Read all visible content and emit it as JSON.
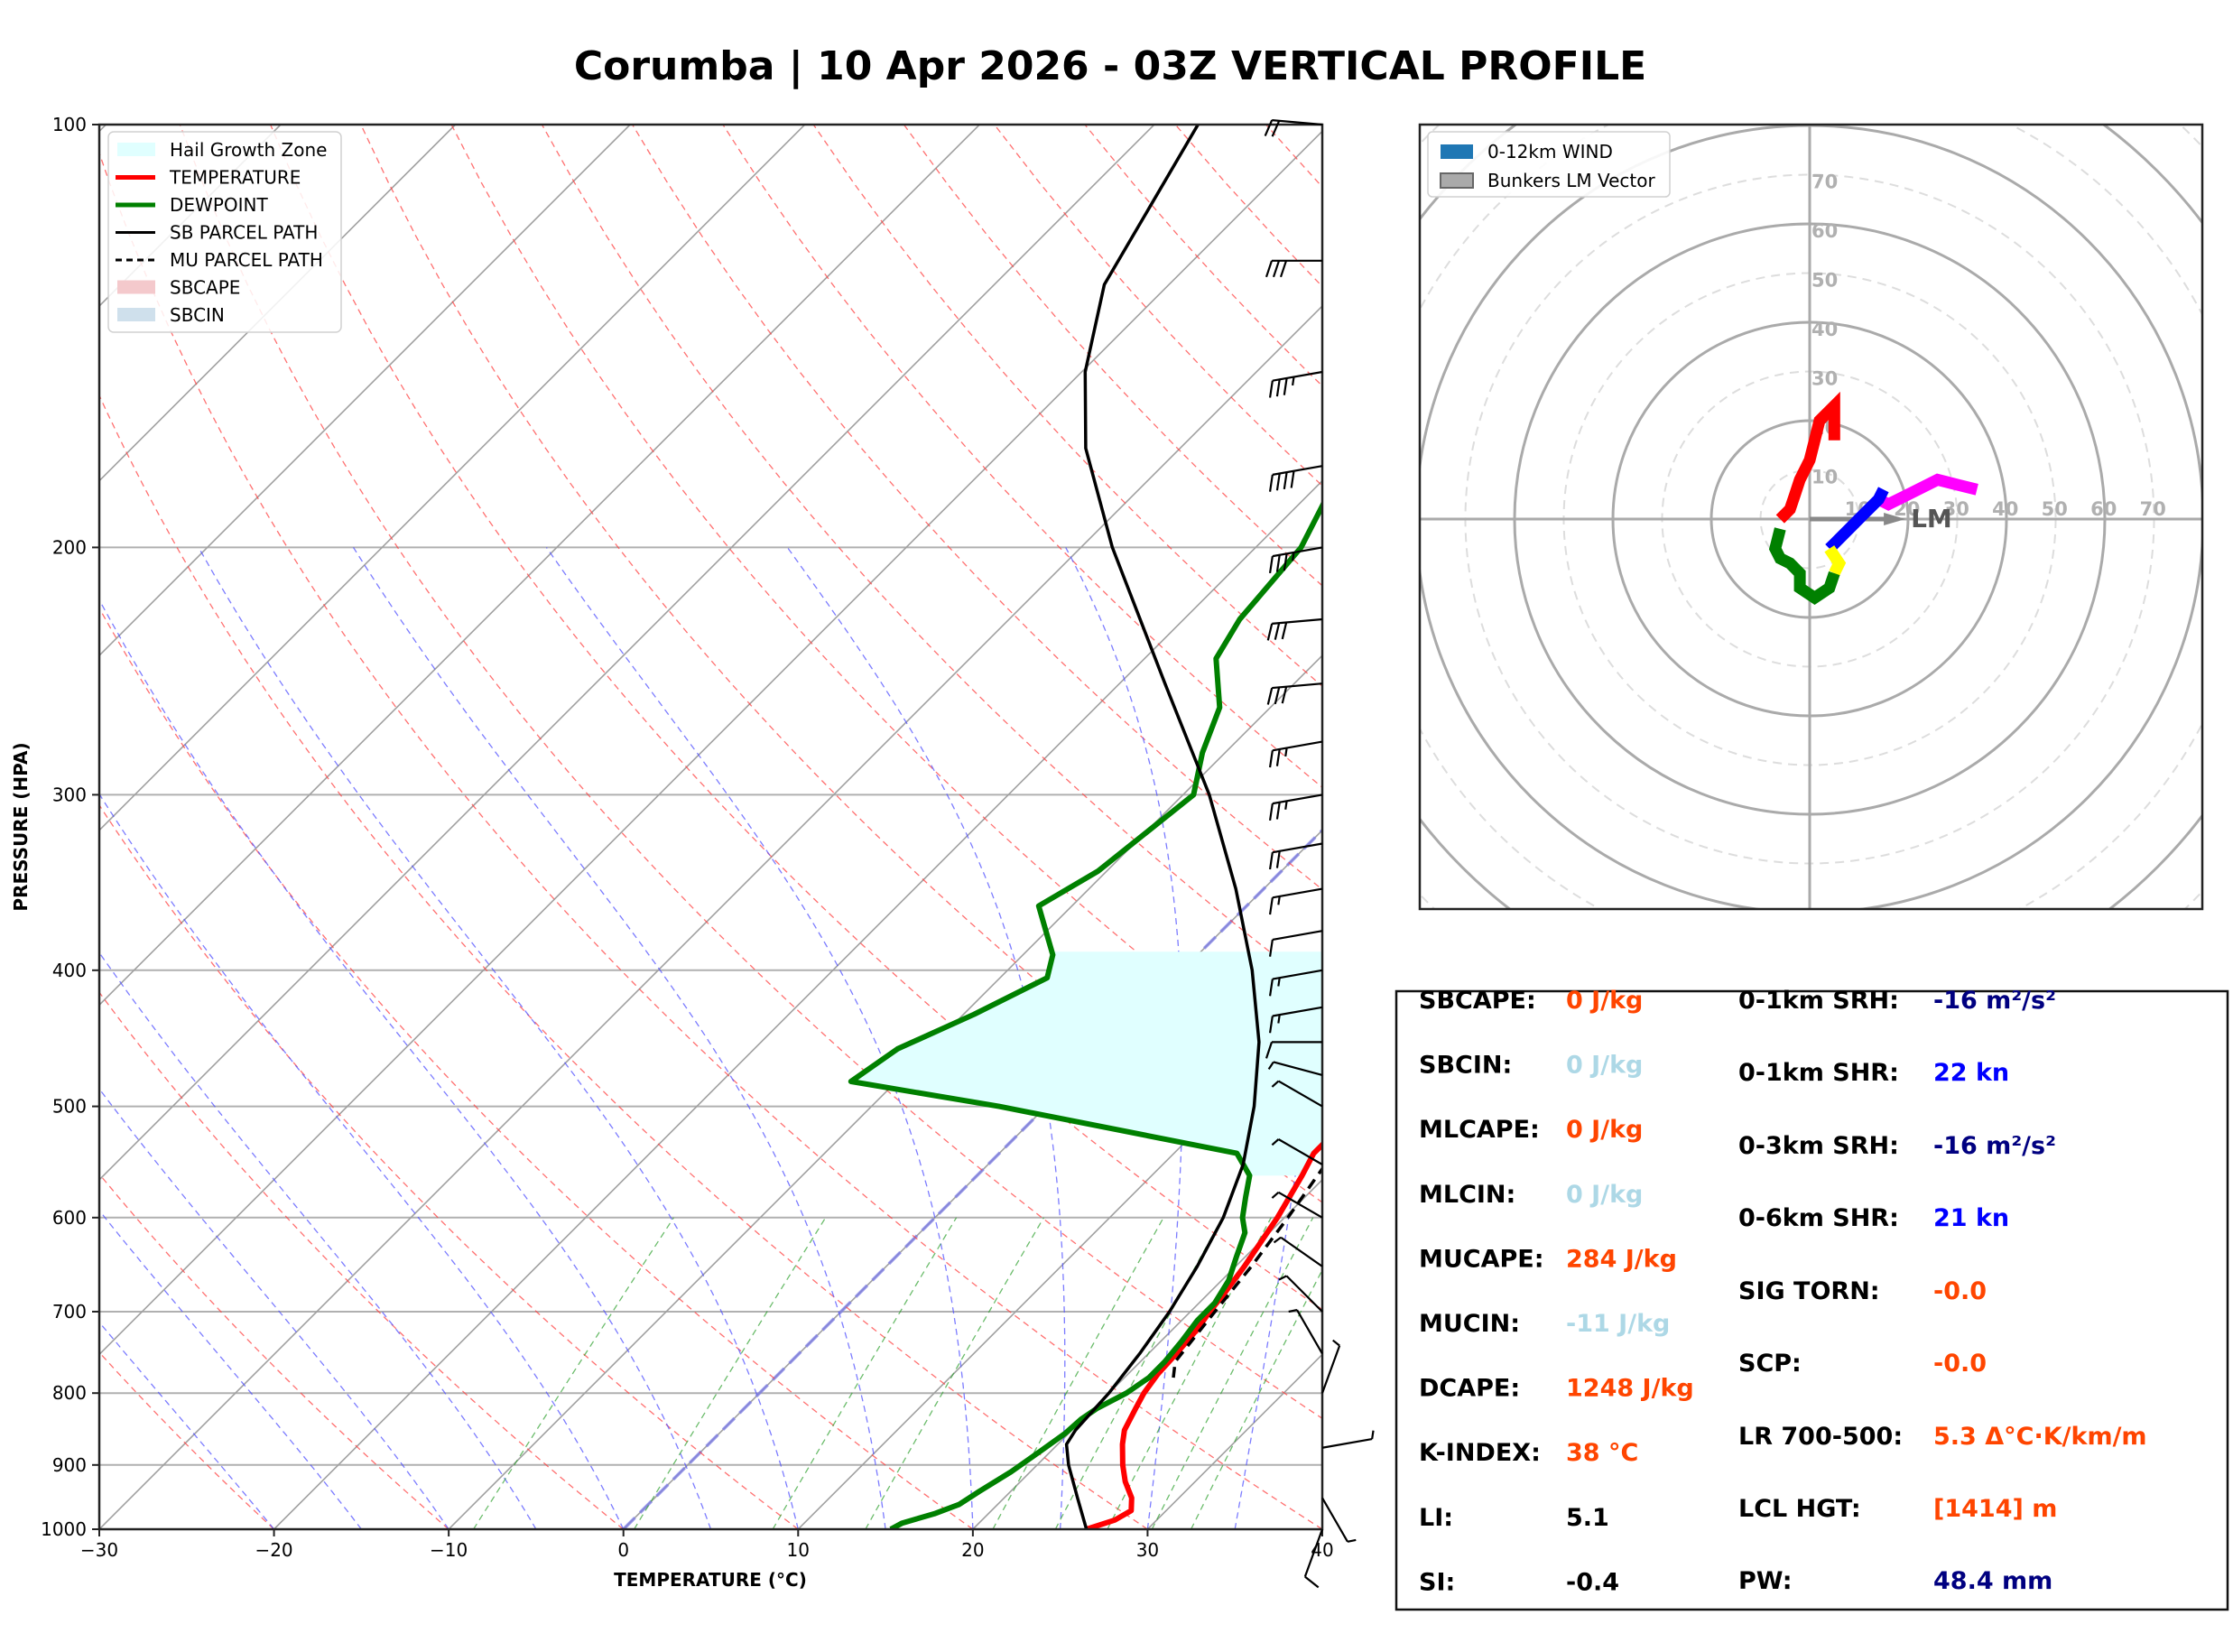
{
  "chart_data": [
    {
      "type": "line",
      "subtype": "skew-t log-p",
      "title": "Corumba | 10 Apr 2026 - 03Z VERTICAL PROFILE",
      "xlabel": "TEMPERATURE (°C)",
      "ylabel": "PRESSURE (HPA)",
      "xlim": [
        -30,
        40
      ],
      "ylim": [
        1000,
        100
      ],
      "xticks": [
        -30,
        -20,
        -10,
        0,
        10,
        20,
        30,
        40
      ],
      "xtick_labels": [
        "−30",
        "−20",
        "−10",
        "0",
        "10",
        "20",
        "30",
        "40"
      ],
      "yticks": [
        100,
        200,
        300,
        400,
        500,
        600,
        700,
        800,
        900,
        1000
      ],
      "ytick_labels": [
        "100",
        "200",
        "300",
        "400",
        "500",
        "600",
        "700",
        "800",
        "900",
        "1000"
      ],
      "grid": true,
      "legend_position": "top-left",
      "legend": [
        {
          "label": "Hail Growth Zone",
          "kind": "patch",
          "color": "#e0ffff"
        },
        {
          "label": "TEMPERATURE",
          "kind": "line",
          "color": "#ff0000"
        },
        {
          "label": "DEWPOINT",
          "kind": "line",
          "color": "#008000"
        },
        {
          "label": "SB PARCEL PATH",
          "kind": "line",
          "color": "#000000"
        },
        {
          "label": "MU PARCEL PATH",
          "kind": "dashed",
          "color": "#000000"
        },
        {
          "label": "SBCAPE",
          "kind": "patch",
          "color": "#f4c9cc"
        },
        {
          "label": "SBCIN",
          "kind": "patch",
          "color": "#cfe0ec"
        }
      ],
      "series": [
        {
          "name": "TEMPERATURE",
          "color": "#ff0000",
          "points": [
            [
              1000,
              26.5
            ],
            [
              985,
              27.6
            ],
            [
              970,
              28.0
            ],
            [
              950,
              27.3
            ],
            [
              925,
              26.0
            ],
            [
              900,
              24.9
            ],
            [
              870,
              23.7
            ],
            [
              850,
              23.0
            ],
            [
              820,
              22.4
            ],
            [
              800,
              22.0
            ],
            [
              775,
              21.7
            ],
            [
              750,
              21.6
            ],
            [
              720,
              21.4
            ],
            [
              700,
              21.1
            ],
            [
              680,
              20.9
            ],
            [
              650,
              20.5
            ],
            [
              600,
              19.6
            ],
            [
              560,
              18.6
            ],
            [
              540,
              18.0
            ],
            [
              525,
              18.0
            ],
            [
              500,
              18.4
            ],
            [
              470,
              17.8
            ],
            [
              440,
              16.2
            ],
            [
              400,
              13.8
            ],
            [
              360,
              11.5
            ],
            [
              330,
              9.4
            ],
            [
              300,
              6.6
            ],
            [
              270,
              3.5
            ],
            [
              245,
              0.5
            ],
            [
              220,
              -2.3
            ],
            [
              200,
              -4.5
            ],
            [
              180,
              -6.0
            ],
            [
              160,
              -7.8
            ],
            [
              140,
              -8.8
            ],
            [
              120,
              -9.0
            ],
            [
              100,
              -8.5
            ]
          ]
        },
        {
          "name": "DEWPOINT",
          "color": "#008000",
          "points": [
            [
              1000,
              15.3
            ],
            [
              990,
              15.6
            ],
            [
              975,
              16.9
            ],
            [
              960,
              17.8
            ],
            [
              940,
              18.2
            ],
            [
              910,
              18.9
            ],
            [
              880,
              19.4
            ],
            [
              855,
              19.8
            ],
            [
              835,
              19.9
            ],
            [
              820,
              20.2
            ],
            [
              800,
              21.0
            ],
            [
              780,
              21.4
            ],
            [
              760,
              21.4
            ],
            [
              735,
              21.2
            ],
            [
              710,
              20.9
            ],
            [
              690,
              20.9
            ],
            [
              665,
              20.4
            ],
            [
              640,
              19.5
            ],
            [
              615,
              18.6
            ],
            [
              600,
              17.6
            ],
            [
              580,
              16.6
            ],
            [
              560,
              15.6
            ],
            [
              540,
              13.6
            ],
            [
              500,
              -2.7
            ],
            [
              480,
              -12.6
            ],
            [
              455,
              -11.8
            ],
            [
              430,
              -9.4
            ],
            [
              405,
              -7.3
            ],
            [
              390,
              -8.3
            ],
            [
              360,
              -11.9
            ],
            [
              340,
              -10.5
            ],
            [
              300,
              -9.4
            ],
            [
              280,
              -11.3
            ],
            [
              260,
              -12.9
            ],
            [
              240,
              -15.9
            ],
            [
              225,
              -16.8
            ],
            [
              200,
              -17.4
            ],
            [
              180,
              -19.2
            ],
            [
              165,
              -21.6
            ],
            [
              145,
              -22.6
            ],
            [
              125,
              -22.9
            ],
            [
              110,
              -22.2
            ],
            [
              100,
              -21.2
            ]
          ]
        },
        {
          "name": "SB PARCEL PATH",
          "color": "#000000",
          "points": [
            [
              1000,
              26.5
            ],
            [
              950,
              24.2
            ],
            [
              900,
              21.8
            ],
            [
              870,
              20.5
            ],
            [
              850,
              20.2
            ],
            [
              800,
              20.0
            ],
            [
              750,
              19.5
            ],
            [
              700,
              18.8
            ],
            [
              650,
              17.8
            ],
            [
              600,
              16.5
            ],
            [
              550,
              14.6
            ],
            [
              500,
              11.9
            ],
            [
              450,
              8.5
            ],
            [
              400,
              4.0
            ],
            [
              350,
              -1.6
            ],
            [
              300,
              -8.5
            ],
            [
              250,
              -17.4
            ],
            [
              200,
              -28.2
            ],
            [
              170,
              -35.4
            ],
            [
              150,
              -39.8
            ],
            [
              130,
              -43.7
            ],
            [
              100,
              -47.5
            ]
          ]
        },
        {
          "name": "MU PARCEL PATH",
          "color": "#000000",
          "dashed": true,
          "points": [
            [
              780,
              22.8
            ],
            [
              760,
              22.0
            ],
            [
              740,
              21.8
            ],
            [
              700,
              21.4
            ],
            [
              650,
              20.9
            ],
            [
              600,
              20.2
            ],
            [
              550,
              19.3
            ],
            [
              500,
              18.1
            ],
            [
              450,
              16.4
            ],
            [
              400,
              14.1
            ],
            [
              350,
              10.9
            ],
            [
              300,
              6.7
            ],
            [
              250,
              0.9
            ],
            [
              200,
              -7.4
            ],
            [
              170,
              -14.0
            ],
            [
              150,
              -19.2
            ],
            [
              130,
              -25.0
            ],
            [
              100,
              -35.6
            ]
          ]
        }
      ],
      "hail_growth_zone": {
        "p_top": 388,
        "p_bottom": 560,
        "color": "#e0ffff"
      },
      "wind_barbs": {
        "side": "right",
        "note": "wind barbs plotted along the right edge from 1000 hPa to 100 hPa",
        "levels": [
          {
            "p": 100,
            "dir": 275,
            "spd": 20
          },
          {
            "p": 125,
            "dir": 270,
            "spd": 30
          },
          {
            "p": 150,
            "dir": 260,
            "spd": 35
          },
          {
            "p": 175,
            "dir": 260,
            "spd": 40
          },
          {
            "p": 200,
            "dir": 260,
            "spd": 35
          },
          {
            "p": 225,
            "dir": 265,
            "spd": 30
          },
          {
            "p": 250,
            "dir": 265,
            "spd": 30
          },
          {
            "p": 275,
            "dir": 260,
            "spd": 25
          },
          {
            "p": 300,
            "dir": 260,
            "spd": 25
          },
          {
            "p": 325,
            "dir": 260,
            "spd": 20
          },
          {
            "p": 350,
            "dir": 260,
            "spd": 15
          },
          {
            "p": 375,
            "dir": 260,
            "spd": 10
          },
          {
            "p": 400,
            "dir": 260,
            "spd": 15
          },
          {
            "p": 425,
            "dir": 260,
            "spd": 15
          },
          {
            "p": 450,
            "dir": 270,
            "spd": 10
          },
          {
            "p": 475,
            "dir": 285,
            "spd": 5
          },
          {
            "p": 500,
            "dir": 300,
            "spd": 5
          },
          {
            "p": 550,
            "dir": 300,
            "spd": 5
          },
          {
            "p": 600,
            "dir": 300,
            "spd": 5
          },
          {
            "p": 650,
            "dir": 305,
            "spd": 5
          },
          {
            "p": 700,
            "dir": 315,
            "spd": 5
          },
          {
            "p": 750,
            "dir": 330,
            "spd": 5
          },
          {
            "p": 800,
            "dir": 20,
            "spd": 5
          },
          {
            "p": 875,
            "dir": 80,
            "spd": 5
          },
          {
            "p": 950,
            "dir": 150,
            "spd": 5
          },
          {
            "p": 1000,
            "dir": 200,
            "spd": 10
          }
        ]
      }
    },
    {
      "type": "line",
      "subtype": "hodograph",
      "title": "",
      "units": "kt",
      "ring_labels": [
        "10",
        "20",
        "30",
        "40",
        "50",
        "60",
        "70"
      ],
      "rings": [
        10,
        20,
        30,
        40,
        50,
        60,
        70,
        80
      ],
      "grid": true,
      "legend_position": "top-left",
      "legend": [
        {
          "label": "0-12km WIND",
          "color": "#1f77b4"
        },
        {
          "label": "Bunkers LM Vector",
          "color": "#aaaaaa"
        }
      ],
      "storm_motion": {
        "label": "LM",
        "u": 18,
        "v": 0
      },
      "segments": [
        {
          "name": "0-1km",
          "color": "#ff00ff",
          "uv": [
            [
              34,
              6
            ],
            [
              30,
              7
            ],
            [
              26,
              8
            ],
            [
              20,
              5
            ],
            [
              16,
              3
            ],
            [
              14,
              4
            ]
          ]
        },
        {
          "name": "1-3km",
          "color": "#0000ff",
          "uv": [
            [
              15,
              6
            ],
            [
              14,
              4
            ],
            [
              11,
              1
            ],
            [
              8,
              -2
            ],
            [
              5,
              -5
            ],
            [
              4,
              -6
            ]
          ]
        },
        {
          "name": "3-6km",
          "color": "#ffff00",
          "uv": [
            [
              4,
              -6
            ],
            [
              6,
              -9
            ],
            [
              5,
              -11
            ]
          ]
        },
        {
          "name": "6-9km",
          "color": "#008000",
          "uv": [
            [
              5,
              -11
            ],
            [
              4,
              -14
            ],
            [
              1,
              -16
            ],
            [
              -2,
              -14
            ],
            [
              -2,
              -11
            ],
            [
              -4,
              -9
            ],
            [
              -6,
              -8
            ],
            [
              -7,
              -6
            ],
            [
              -6,
              -2
            ]
          ]
        },
        {
          "name": "9-12km",
          "color": "#ff0000",
          "uv": [
            [
              -6,
              0
            ],
            [
              -4,
              2
            ],
            [
              -3,
              5
            ],
            [
              -2,
              8
            ],
            [
              0,
              12
            ],
            [
              1,
              16
            ],
            [
              2,
              20
            ],
            [
              4,
              22
            ],
            [
              5,
              23
            ],
            [
              5,
              19
            ],
            [
              5,
              16
            ]
          ]
        }
      ]
    }
  ],
  "stats": {
    "left": [
      {
        "label": "SBCAPE:",
        "value": "0 J/kg",
        "color": "#ff4500"
      },
      {
        "label": "SBCIN:",
        "value": "0 J/kg",
        "color": "#add8e6"
      },
      {
        "label": "MLCAPE:",
        "value": "0 J/kg",
        "color": "#ff4500"
      },
      {
        "label": "MLCIN:",
        "value": "0 J/kg",
        "color": "#add8e6"
      },
      {
        "label": "MUCAPE:",
        "value": "284 J/kg",
        "color": "#ff4500"
      },
      {
        "label": "MUCIN:",
        "value": "-11 J/kg",
        "color": "#add8e6"
      },
      {
        "label": "DCAPE:",
        "value": "1248 J/kg",
        "color": "#ff4500"
      },
      {
        "label": "K-INDEX:",
        "value": "38 °C",
        "color": "#ff4500"
      },
      {
        "label": "LI:",
        "value": "5.1",
        "color": "#000000"
      },
      {
        "label": "SI:",
        "value": "-0.4",
        "color": "#000000"
      }
    ],
    "right": [
      {
        "label": "0-1km SRH:",
        "value": "-16 m²/s²",
        "color": "#000080"
      },
      {
        "label": "0-1km SHR:",
        "value": "22 kn",
        "color": "#0000ff"
      },
      {
        "label": "0-3km SRH:",
        "value": "-16 m²/s²",
        "color": "#000080"
      },
      {
        "label": "0-6km SHR:",
        "value": "21 kn",
        "color": "#0000ff"
      },
      {
        "label": "SIG TORN:",
        "value": "-0.0",
        "color": "#ff4500"
      },
      {
        "label": "SCP:",
        "value": "-0.0",
        "color": "#ff4500"
      },
      {
        "label": "LR 700-500:",
        "value": "5.3 Δ°C·K/km/m",
        "color": "#ff4500"
      },
      {
        "label": "LCL HGT:",
        "value": "[1414] m",
        "color": "#ff4500"
      },
      {
        "label": "PW:",
        "value": "48.4 mm",
        "color": "#000080"
      }
    ]
  }
}
